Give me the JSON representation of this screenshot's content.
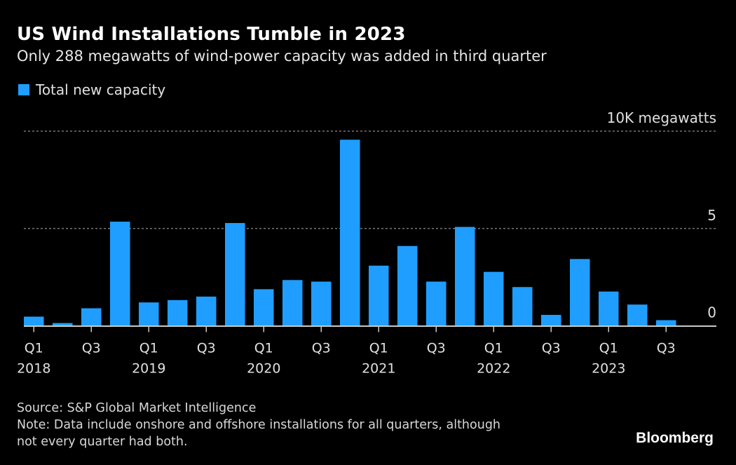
{
  "header": {
    "title": "US Wind Installations Tumble in 2023",
    "subtitle": "Only 288 megawatts of wind-power capacity was added in third quarter"
  },
  "footer": {
    "source": "Source: S&P Global Market Intelligence",
    "note_line1": "Note: Data include onshore and offshore installations for all quarters, although",
    "note_line2": "not every quarter had both.",
    "brand": "Bloomberg"
  },
  "colors": {
    "bar": "#1f9eff",
    "background": "#000000",
    "grid": "#8c8c8c",
    "axis": "#c8c8c8"
  },
  "chart_data": {
    "type": "bar",
    "title": "US Wind Installations Tumble in 2023",
    "subtitle": "Only 288 megawatts of wind-power capacity was added in third quarter",
    "xlabel": "",
    "ylabel": "megawatts (thousands)",
    "legend": {
      "entries": [
        "Total new capacity"
      ],
      "placement": "top-left"
    },
    "grid": true,
    "ylim": [
      0,
      10
    ],
    "yticks": [
      {
        "value": 0,
        "label": "0"
      },
      {
        "value": 5,
        "label": "5"
      },
      {
        "value": 10,
        "label": "10K megawatts"
      }
    ],
    "categories": [
      "2018 Q1",
      "2018 Q2",
      "2018 Q3",
      "2018 Q4",
      "2019 Q1",
      "2019 Q2",
      "2019 Q3",
      "2019 Q4",
      "2020 Q1",
      "2020 Q2",
      "2020 Q3",
      "2020 Q4",
      "2021 Q1",
      "2021 Q2",
      "2021 Q3",
      "2021 Q4",
      "2022 Q1",
      "2022 Q2",
      "2022 Q3",
      "2022 Q4",
      "2023 Q1",
      "2023 Q2",
      "2023 Q3"
    ],
    "xticks": [
      {
        "index": 0,
        "quarter": "Q1",
        "year": "2018"
      },
      {
        "index": 2,
        "quarter": "Q3",
        "year": ""
      },
      {
        "index": 4,
        "quarter": "Q1",
        "year": "2019"
      },
      {
        "index": 6,
        "quarter": "Q3",
        "year": ""
      },
      {
        "index": 8,
        "quarter": "Q1",
        "year": "2020"
      },
      {
        "index": 10,
        "quarter": "Q3",
        "year": ""
      },
      {
        "index": 12,
        "quarter": "Q1",
        "year": "2021"
      },
      {
        "index": 14,
        "quarter": "Q3",
        "year": ""
      },
      {
        "index": 16,
        "quarter": "Q1",
        "year": "2022"
      },
      {
        "index": 18,
        "quarter": "Q3",
        "year": ""
      },
      {
        "index": 20,
        "quarter": "Q1",
        "year": "2023"
      },
      {
        "index": 22,
        "quarter": "Q3",
        "year": ""
      }
    ],
    "series": [
      {
        "name": "Total new capacity",
        "color": "#1f9eff",
        "values": [
          0.47,
          0.14,
          0.9,
          5.35,
          1.2,
          1.32,
          1.5,
          5.28,
          1.88,
          2.35,
          2.27,
          9.56,
          3.09,
          4.1,
          2.27,
          5.08,
          2.77,
          1.99,
          0.56,
          3.43,
          1.76,
          1.09,
          0.288
        ]
      }
    ]
  }
}
